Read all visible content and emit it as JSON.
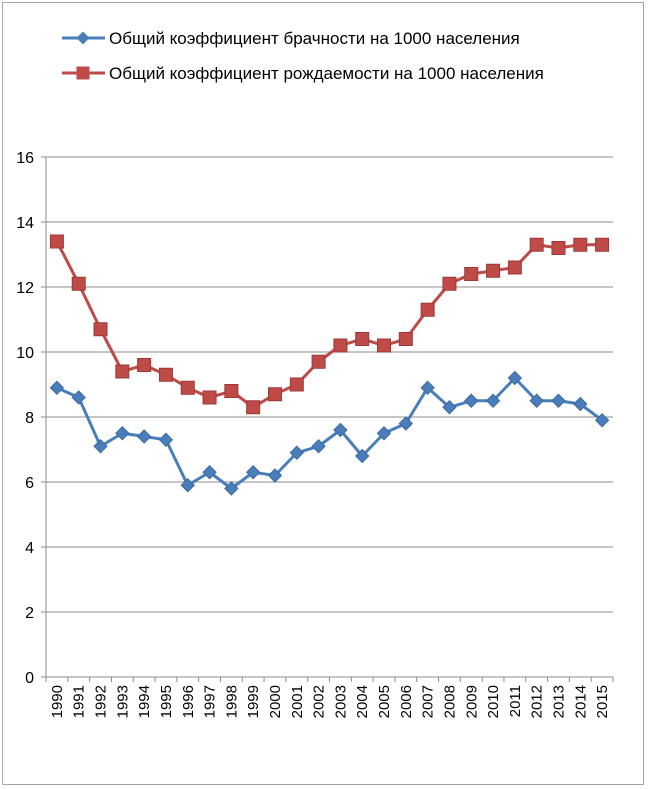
{
  "chart_data": {
    "type": "line",
    "title": "",
    "xlabel": "",
    "ylabel": "",
    "ylim": [
      0,
      16
    ],
    "yticks": [
      0,
      2,
      4,
      6,
      8,
      10,
      12,
      14,
      16
    ],
    "grid": true,
    "legend_position": "top",
    "categories": [
      "1990",
      "1991",
      "1992",
      "1993",
      "1994",
      "1995",
      "1996",
      "1997",
      "1998",
      "1999",
      "2000",
      "2001",
      "2002",
      "2003",
      "2004",
      "2005",
      "2006",
      "2007",
      "2008",
      "2009",
      "2010",
      "2011",
      "2012",
      "2013",
      "2014",
      "2015"
    ],
    "series": [
      {
        "name": "Общий коэффициент брачности на 1000 населения",
        "color": "#4a7ebb",
        "marker": "diamond",
        "values": [
          8.9,
          8.6,
          7.1,
          7.5,
          7.4,
          7.3,
          5.9,
          6.3,
          5.8,
          6.3,
          6.2,
          6.9,
          7.1,
          7.6,
          6.8,
          7.5,
          7.8,
          8.9,
          8.3,
          8.5,
          8.5,
          9.2,
          8.5,
          8.5,
          8.4,
          7.9
        ]
      },
      {
        "name": "Общий коэффициент рождаемости на 1000 населения",
        "color": "#be4b48",
        "marker": "square",
        "values": [
          13.4,
          12.1,
          10.7,
          9.4,
          9.6,
          9.3,
          8.9,
          8.6,
          8.8,
          8.3,
          8.7,
          9.0,
          9.7,
          10.2,
          10.4,
          10.2,
          10.4,
          11.3,
          12.1,
          12.4,
          12.5,
          12.6,
          13.3,
          13.2,
          13.3,
          13.3
        ]
      }
    ]
  }
}
